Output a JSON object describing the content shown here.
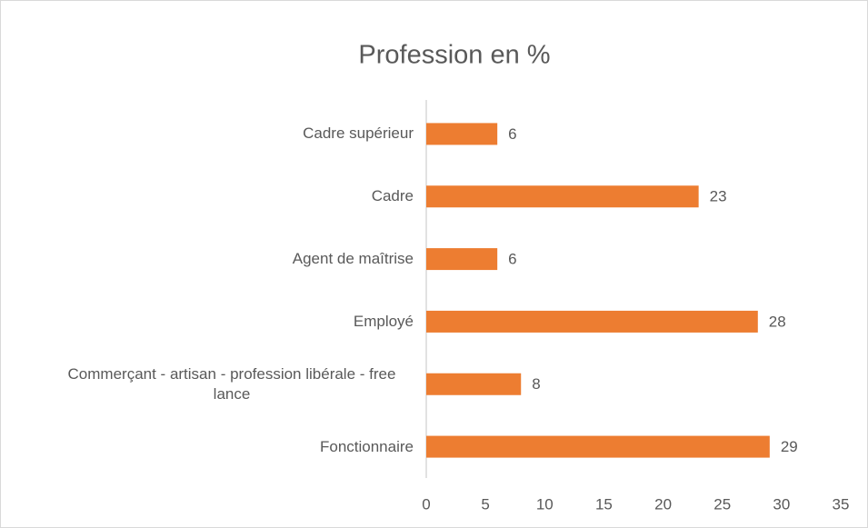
{
  "chart_data": {
    "type": "bar",
    "orientation": "horizontal",
    "title": "Profession en %",
    "categories": [
      "Cadre supérieur",
      "Cadre",
      "Agent de maîtrise",
      "Employé",
      "Commerçant - artisan - profession libérale - free lance",
      "Fonctionnaire"
    ],
    "values": [
      6,
      23,
      6,
      28,
      8,
      29
    ],
    "color": "#ed7d31",
    "xlim": [
      0,
      35
    ],
    "xticks": [
      0,
      5,
      10,
      15,
      20,
      25,
      30,
      35
    ],
    "grid": false
  }
}
